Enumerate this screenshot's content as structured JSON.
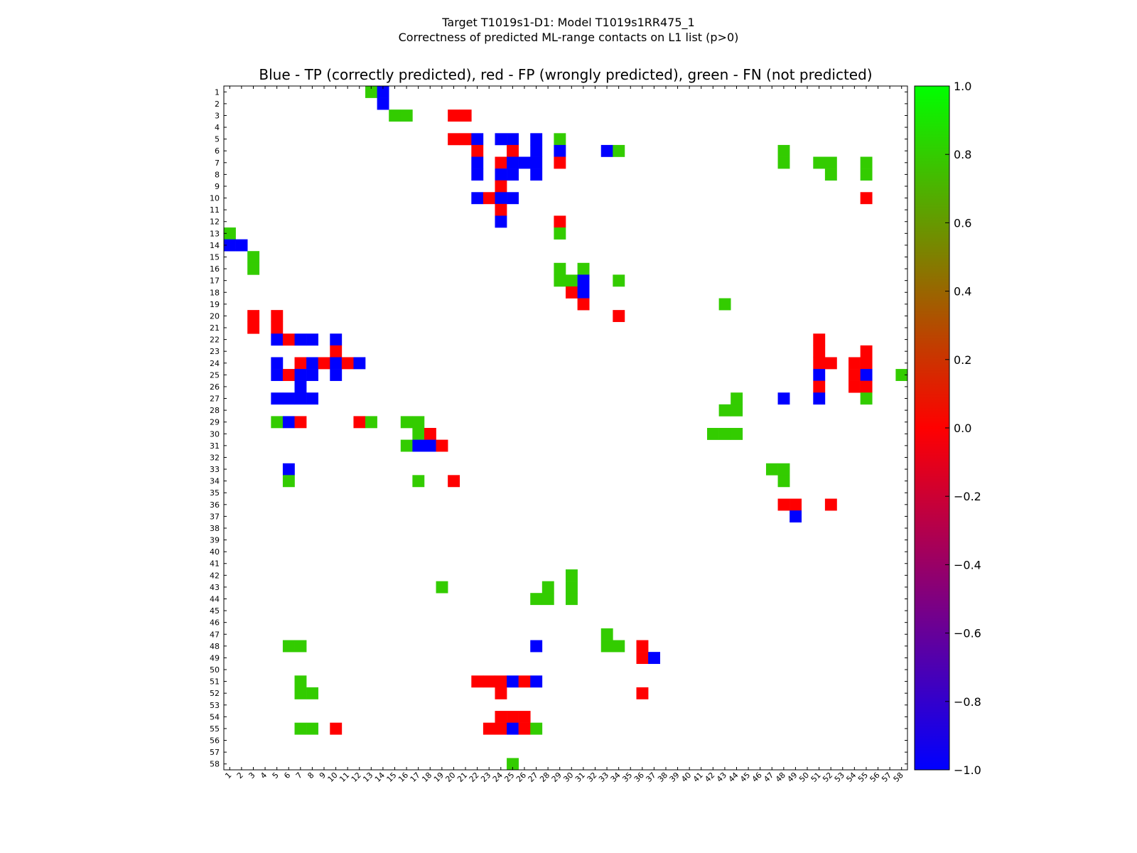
{
  "chart_data": {
    "type": "heatmap",
    "title_line1": "Target T1019s1-D1: Model T1019s1RR475_1",
    "title_line2": "Correctness of predicted ML-range contacts on L1 list (p>0)",
    "subtitle": "Blue - TP (correctly predicted), red - FP (wrongly predicted), green - FN (not predicted)",
    "n": 58,
    "x_ticks": [
      "1",
      "2",
      "3",
      "4",
      "5",
      "6",
      "7",
      "8",
      "9",
      "10",
      "11",
      "12",
      "13",
      "14",
      "15",
      "16",
      "17",
      "18",
      "19",
      "20",
      "21",
      "22",
      "23",
      "24",
      "25",
      "26",
      "27",
      "28",
      "29",
      "30",
      "31",
      "32",
      "33",
      "34",
      "35",
      "36",
      "37",
      "38",
      "39",
      "40",
      "41",
      "42",
      "43",
      "44",
      "45",
      "46",
      "47",
      "48",
      "49",
      "50",
      "51",
      "52",
      "53",
      "54",
      "55",
      "56",
      "57",
      "58"
    ],
    "y_ticks": [
      "1",
      "2",
      "3",
      "4",
      "5",
      "6",
      "7",
      "8",
      "9",
      "10",
      "11",
      "12",
      "13",
      "14",
      "15",
      "16",
      "17",
      "18",
      "19",
      "20",
      "21",
      "22",
      "23",
      "24",
      "25",
      "26",
      "27",
      "28",
      "29",
      "30",
      "31",
      "32",
      "33",
      "34",
      "35",
      "36",
      "37",
      "38",
      "39",
      "40",
      "41",
      "42",
      "43",
      "44",
      "45",
      "46",
      "47",
      "48",
      "49",
      "50",
      "51",
      "52",
      "53",
      "54",
      "55",
      "56",
      "57",
      "58"
    ],
    "colorbar": {
      "range": [
        -1.0,
        1.0
      ],
      "ticks": [
        "1.0",
        "0.8",
        "0.6",
        "0.4",
        "0.2",
        "0.0",
        "−0.2",
        "−0.4",
        "−0.6",
        "−0.8",
        "−1.0"
      ],
      "tick_values": [
        1.0,
        0.8,
        0.6,
        0.4,
        0.2,
        0.0,
        -0.2,
        -0.4,
        -0.6,
        -0.8,
        -1.0
      ]
    },
    "value_legend": {
      "TP": -1,
      "FP": 0,
      "FN": 0.8
    },
    "colors": {
      "TP": "#0000ff",
      "FP": "#ff0000",
      "FN": "#33cc00"
    },
    "grid": false,
    "cells": [
      [
        1,
        13,
        0.8
      ],
      [
        1,
        14,
        -1
      ],
      [
        2,
        14,
        -1
      ],
      [
        3,
        15,
        0.8
      ],
      [
        3,
        16,
        0.8
      ],
      [
        3,
        20,
        0
      ],
      [
        3,
        21,
        0
      ],
      [
        5,
        20,
        0
      ],
      [
        5,
        21,
        0
      ],
      [
        5,
        22,
        -1
      ],
      [
        5,
        24,
        -1
      ],
      [
        5,
        25,
        -1
      ],
      [
        5,
        27,
        -1
      ],
      [
        5,
        29,
        0.8
      ],
      [
        6,
        22,
        0
      ],
      [
        6,
        25,
        0
      ],
      [
        6,
        27,
        -1
      ],
      [
        6,
        29,
        -1
      ],
      [
        6,
        33,
        -1
      ],
      [
        6,
        34,
        0.8
      ],
      [
        6,
        48,
        0.8
      ],
      [
        7,
        22,
        -1
      ],
      [
        7,
        24,
        0
      ],
      [
        7,
        25,
        -1
      ],
      [
        7,
        26,
        -1
      ],
      [
        7,
        27,
        -1
      ],
      [
        7,
        29,
        0
      ],
      [
        7,
        48,
        0.8
      ],
      [
        7,
        51,
        0.8
      ],
      [
        7,
        52,
        0.8
      ],
      [
        7,
        55,
        0.8
      ],
      [
        8,
        22,
        -1
      ],
      [
        8,
        24,
        -1
      ],
      [
        8,
        25,
        -1
      ],
      [
        8,
        27,
        -1
      ],
      [
        8,
        52,
        0.8
      ],
      [
        8,
        55,
        0.8
      ],
      [
        9,
        24,
        0
      ],
      [
        10,
        22,
        -1
      ],
      [
        10,
        23,
        0
      ],
      [
        10,
        24,
        -1
      ],
      [
        10,
        25,
        -1
      ],
      [
        10,
        55,
        0
      ],
      [
        11,
        24,
        0
      ],
      [
        12,
        24,
        -1
      ],
      [
        12,
        29,
        0
      ],
      [
        13,
        1,
        0.8
      ],
      [
        13,
        29,
        0.8
      ],
      [
        14,
        1,
        -1
      ],
      [
        14,
        2,
        -1
      ],
      [
        15,
        3,
        0.8
      ],
      [
        16,
        3,
        0.8
      ],
      [
        16,
        29,
        0.8
      ],
      [
        16,
        31,
        0.8
      ],
      [
        17,
        29,
        0.8
      ],
      [
        17,
        30,
        0.8
      ],
      [
        17,
        31,
        -1
      ],
      [
        17,
        34,
        0.8
      ],
      [
        18,
        30,
        0
      ],
      [
        18,
        31,
        -1
      ],
      [
        19,
        31,
        0
      ],
      [
        19,
        43,
        0.8
      ],
      [
        20,
        3,
        0
      ],
      [
        20,
        5,
        0
      ],
      [
        20,
        34,
        0
      ],
      [
        21,
        3,
        0
      ],
      [
        21,
        5,
        0
      ],
      [
        22,
        5,
        -1
      ],
      [
        22,
        6,
        0
      ],
      [
        22,
        7,
        -1
      ],
      [
        22,
        8,
        -1
      ],
      [
        22,
        10,
        -1
      ],
      [
        22,
        51,
        0
      ],
      [
        23,
        10,
        0
      ],
      [
        23,
        51,
        0
      ],
      [
        23,
        55,
        0
      ],
      [
        24,
        5,
        -1
      ],
      [
        24,
        7,
        0
      ],
      [
        24,
        8,
        -1
      ],
      [
        24,
        9,
        0
      ],
      [
        24,
        10,
        -1
      ],
      [
        24,
        11,
        0
      ],
      [
        24,
        12,
        -1
      ],
      [
        24,
        51,
        0
      ],
      [
        24,
        52,
        0
      ],
      [
        24,
        54,
        0
      ],
      [
        24,
        55,
        0
      ],
      [
        25,
        5,
        -1
      ],
      [
        25,
        6,
        0
      ],
      [
        25,
        7,
        -1
      ],
      [
        25,
        8,
        -1
      ],
      [
        25,
        10,
        -1
      ],
      [
        25,
        51,
        -1
      ],
      [
        25,
        54,
        0
      ],
      [
        25,
        55,
        -1
      ],
      [
        25,
        58,
        0.8
      ],
      [
        26,
        7,
        -1
      ],
      [
        26,
        51,
        0
      ],
      [
        26,
        54,
        0
      ],
      [
        26,
        55,
        0
      ],
      [
        27,
        5,
        -1
      ],
      [
        27,
        6,
        -1
      ],
      [
        27,
        7,
        -1
      ],
      [
        27,
        8,
        -1
      ],
      [
        27,
        44,
        0.8
      ],
      [
        27,
        48,
        -1
      ],
      [
        27,
        51,
        -1
      ],
      [
        27,
        55,
        0.8
      ],
      [
        28,
        43,
        0.8
      ],
      [
        28,
        44,
        0.8
      ],
      [
        29,
        5,
        0.8
      ],
      [
        29,
        6,
        -1
      ],
      [
        29,
        7,
        0
      ],
      [
        29,
        12,
        0
      ],
      [
        29,
        13,
        0.8
      ],
      [
        29,
        16,
        0.8
      ],
      [
        29,
        17,
        0.8
      ],
      [
        30,
        17,
        0.8
      ],
      [
        30,
        18,
        0
      ],
      [
        30,
        42,
        0.8
      ],
      [
        30,
        43,
        0.8
      ],
      [
        30,
        44,
        0.8
      ],
      [
        31,
        16,
        0.8
      ],
      [
        31,
        17,
        -1
      ],
      [
        31,
        18,
        -1
      ],
      [
        31,
        19,
        0
      ],
      [
        33,
        6,
        -1
      ],
      [
        33,
        47,
        0.8
      ],
      [
        33,
        48,
        0.8
      ],
      [
        34,
        6,
        0.8
      ],
      [
        34,
        17,
        0.8
      ],
      [
        34,
        20,
        0
      ],
      [
        34,
        48,
        0.8
      ],
      [
        36,
        48,
        0
      ],
      [
        36,
        49,
        0
      ],
      [
        36,
        52,
        0
      ],
      [
        37,
        49,
        -1
      ],
      [
        42,
        30,
        0.8
      ],
      [
        43,
        19,
        0.8
      ],
      [
        43,
        28,
        0.8
      ],
      [
        43,
        30,
        0.8
      ],
      [
        44,
        27,
        0.8
      ],
      [
        44,
        28,
        0.8
      ],
      [
        44,
        30,
        0.8
      ],
      [
        47,
        33,
        0.8
      ],
      [
        48,
        6,
        0.8
      ],
      [
        48,
        7,
        0.8
      ],
      [
        48,
        27,
        -1
      ],
      [
        48,
        33,
        0.8
      ],
      [
        48,
        34,
        0.8
      ],
      [
        48,
        36,
        0
      ],
      [
        49,
        36,
        0
      ],
      [
        49,
        37,
        -1
      ],
      [
        51,
        7,
        0.8
      ],
      [
        51,
        22,
        0
      ],
      [
        51,
        23,
        0
      ],
      [
        51,
        24,
        0
      ],
      [
        51,
        25,
        -1
      ],
      [
        51,
        26,
        0
      ],
      [
        51,
        27,
        -1
      ],
      [
        52,
        7,
        0.8
      ],
      [
        52,
        8,
        0.8
      ],
      [
        52,
        24,
        0
      ],
      [
        52,
        36,
        0
      ],
      [
        54,
        24,
        0
      ],
      [
        54,
        25,
        0
      ],
      [
        54,
        26,
        0
      ],
      [
        55,
        7,
        0.8
      ],
      [
        55,
        8,
        0.8
      ],
      [
        55,
        10,
        0
      ],
      [
        55,
        23,
        0
      ],
      [
        55,
        24,
        0
      ],
      [
        55,
        25,
        -1
      ],
      [
        55,
        26,
        0
      ],
      [
        55,
        27,
        0.8
      ],
      [
        58,
        25,
        0.8
      ]
    ]
  }
}
